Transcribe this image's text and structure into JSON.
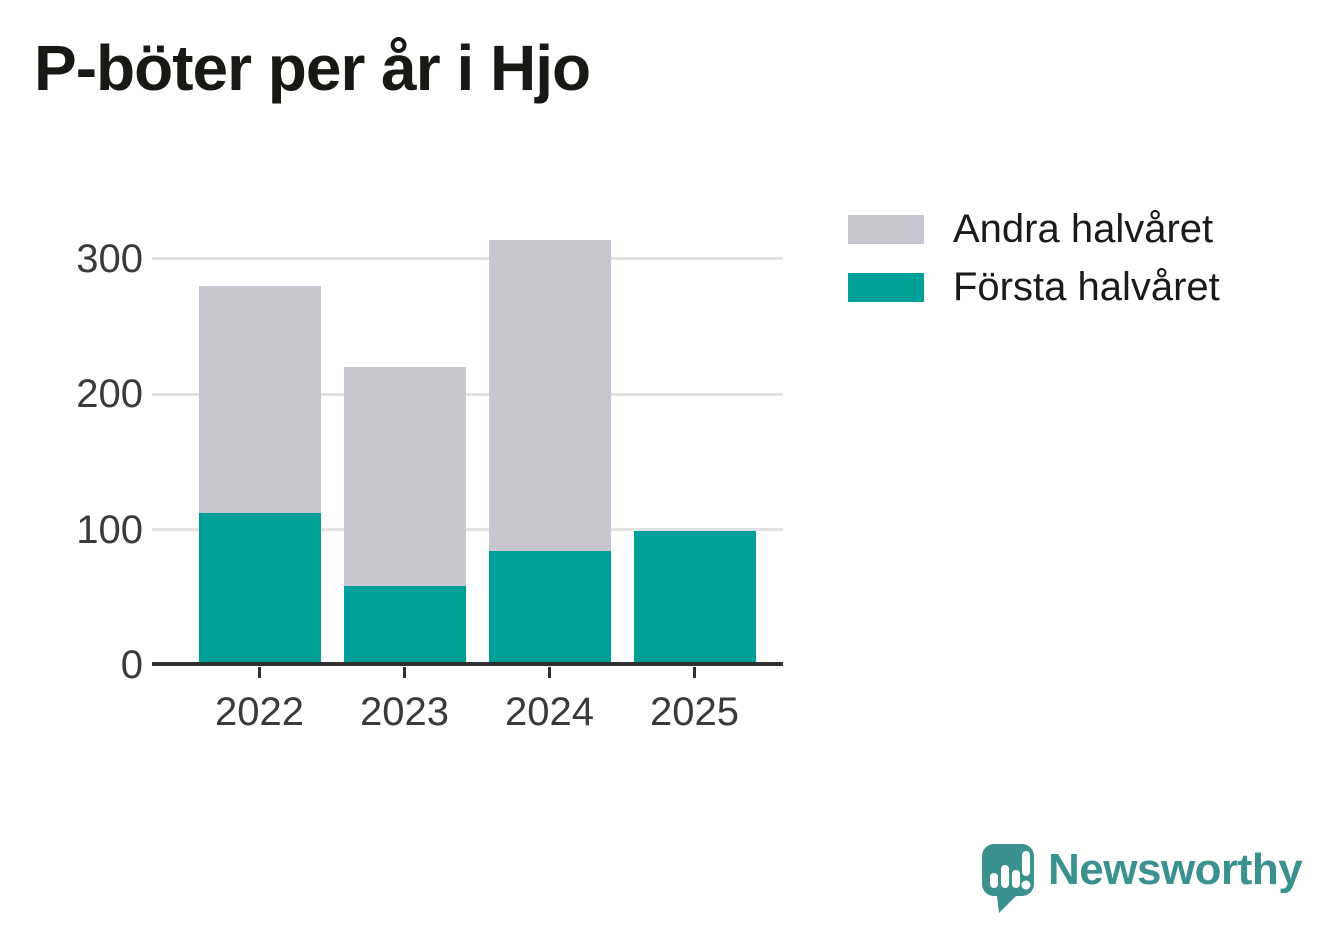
{
  "title": "P-böter per år i Hjo",
  "chart_data": {
    "type": "bar",
    "stacked": true,
    "categories": [
      "2022",
      "2023",
      "2024",
      "2025"
    ],
    "series": [
      {
        "name": "Första halvåret",
        "color": "#00a09a",
        "values": [
          112,
          58,
          84,
          99
        ]
      },
      {
        "name": "Andra halvåret",
        "color": "#c9c6d2",
        "values": [
          168,
          162,
          230,
          0
        ]
      }
    ],
    "stack_totals": [
      280,
      220,
      314,
      99
    ],
    "title": "P-böter per år i Hjo",
    "xlabel": "",
    "ylabel": "",
    "yticks": [
      0,
      100,
      200,
      300
    ],
    "ylim": [
      0,
      330
    ],
    "grid": true,
    "grid_color": "#e3e3e3",
    "axis_color": "#2f2f2f",
    "tick_label_color": "#3a3a3a",
    "legend_position": "outside top-right"
  },
  "legend": {
    "items": [
      {
        "label": "Andra halvåret",
        "color": "#c9c6d2"
      },
      {
        "label": "Första halvåret",
        "color": "#00a09a"
      }
    ]
  },
  "branding": {
    "name": "Newsworthy",
    "icon": "newsworthy-speech-bubble-chart-icon",
    "color": "#3b918e"
  }
}
